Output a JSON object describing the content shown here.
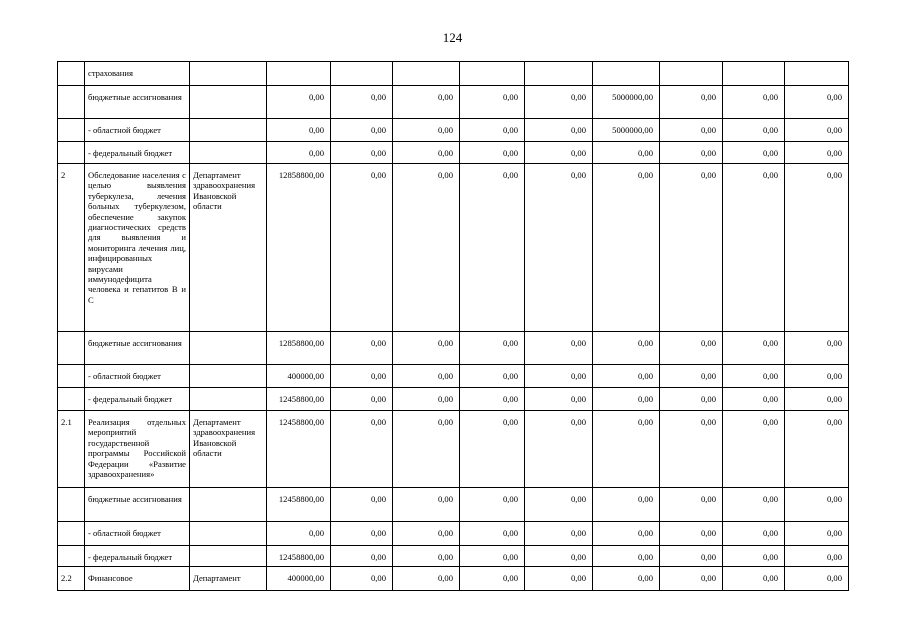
{
  "page_number": "124",
  "rows": [
    {
      "no": "",
      "name": "страхования",
      "exec": "",
      "vals": [
        "",
        "",
        "",
        "",
        "",
        "",
        "",
        "",
        ""
      ],
      "h": 24
    },
    {
      "no": "",
      "name": "бюджетные ассигнования",
      "exec": "",
      "vals": [
        "0,00",
        "0,00",
        "0,00",
        "0,00",
        "0,00",
        "5000000,00",
        "0,00",
        "0,00",
        "0,00"
      ],
      "h": 33
    },
    {
      "no": "",
      "name": "- областной бюджет",
      "exec": "",
      "vals": [
        "0,00",
        "0,00",
        "0,00",
        "0,00",
        "0,00",
        "5000000,00",
        "0,00",
        "0,00",
        "0,00"
      ],
      "h": 23
    },
    {
      "no": "",
      "name": "- федеральный бюджет",
      "exec": "",
      "vals": [
        "0,00",
        "0,00",
        "0,00",
        "0,00",
        "0,00",
        "0,00",
        "0,00",
        "0,00",
        "0,00"
      ],
      "h": 22
    },
    {
      "no": "2",
      "name": "Обследование населения с целью выявления туберкулеза, лечения больных туберкулезом, обеспечение закупок диагностических средств для выявления и мониторинга лечения лиц, инфицированных вирусами иммунодефицита человека и гепатитов B и C",
      "exec": "Департамент здравоохранения Ивановской области",
      "vals": [
        "12858800,00",
        "0,00",
        "0,00",
        "0,00",
        "0,00",
        "0,00",
        "0,00",
        "0,00",
        "0,00"
      ],
      "h": 168
    },
    {
      "no": "",
      "name": "бюджетные ассигнования",
      "exec": "",
      "vals": [
        "12858800,00",
        "0,00",
        "0,00",
        "0,00",
        "0,00",
        "0,00",
        "0,00",
        "0,00",
        "0,00"
      ],
      "h": 33
    },
    {
      "no": "",
      "name": "- областной бюджет",
      "exec": "",
      "vals": [
        "400000,00",
        "0,00",
        "0,00",
        "0,00",
        "0,00",
        "0,00",
        "0,00",
        "0,00",
        "0,00"
      ],
      "h": 23
    },
    {
      "no": "",
      "name": "- федеральный бюджет",
      "exec": "",
      "vals": [
        "12458800,00",
        "0,00",
        "0,00",
        "0,00",
        "0,00",
        "0,00",
        "0,00",
        "0,00",
        "0,00"
      ],
      "h": 23
    },
    {
      "no": "2.1",
      "name": "Реализация отдельных мероприятий государственной программы Российской Федерации «Развитие здравоохранения»",
      "exec": "Департамент здравоохранения Ивановской области",
      "vals": [
        "12458800,00",
        "0,00",
        "0,00",
        "0,00",
        "0,00",
        "0,00",
        "0,00",
        "0,00",
        "0,00"
      ],
      "h": 77
    },
    {
      "no": "",
      "name": "бюджетные ассигнования",
      "exec": "",
      "vals": [
        "12458800,00",
        "0,00",
        "0,00",
        "0,00",
        "0,00",
        "0,00",
        "0,00",
        "0,00",
        "0,00"
      ],
      "h": 34
    },
    {
      "no": "",
      "name": "- областной бюджет",
      "exec": "",
      "vals": [
        "0,00",
        "0,00",
        "0,00",
        "0,00",
        "0,00",
        "0,00",
        "0,00",
        "0,00",
        "0,00"
      ],
      "h": 24
    },
    {
      "no": "",
      "name": "- федеральный бюджет",
      "exec": "",
      "vals": [
        "12458800,00",
        "0,00",
        "0,00",
        "0,00",
        "0,00",
        "0,00",
        "0,00",
        "0,00",
        "0,00"
      ],
      "h": 21
    },
    {
      "no": "2.2",
      "name": "Финансовое",
      "exec": "Департамент",
      "vals": [
        "400000,00",
        "0,00",
        "0,00",
        "0,00",
        "0,00",
        "0,00",
        "0,00",
        "0,00",
        "0,00"
      ],
      "h": 24
    }
  ]
}
